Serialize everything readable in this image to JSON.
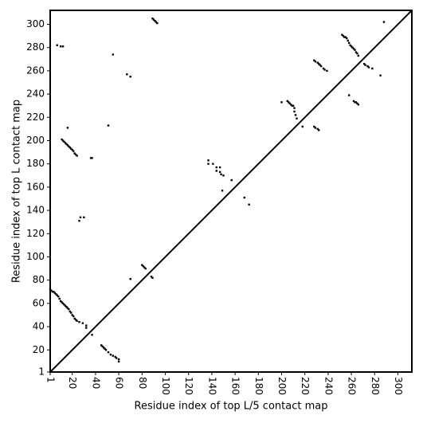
{
  "chart_data": {
    "type": "scatter",
    "xlabel": "Residue index of top L/5 contact map",
    "ylabel": "Residue index of top L contact map",
    "xlim": [
      1,
      312
    ],
    "ylim": [
      1,
      312
    ],
    "xticks": [
      1,
      20,
      40,
      60,
      80,
      100,
      120,
      140,
      160,
      180,
      200,
      220,
      240,
      260,
      280,
      300
    ],
    "yticks": [
      1,
      20,
      40,
      60,
      80,
      100,
      120,
      140,
      160,
      180,
      200,
      220,
      240,
      260,
      280,
      300
    ],
    "color": "#000000",
    "x": [
      11,
      12,
      13,
      14,
      15,
      16,
      17,
      18,
      19,
      20,
      21,
      22,
      23,
      24,
      16,
      7,
      10,
      12,
      55,
      67,
      70,
      36,
      37,
      27,
      30,
      26,
      51,
      89,
      90,
      91,
      92,
      93,
      288,
      252,
      253,
      254,
      255,
      256,
      257,
      258,
      259,
      260,
      261,
      262,
      263,
      264,
      265,
      266,
      271,
      272,
      274,
      275,
      278,
      285,
      228,
      229,
      231,
      232,
      233,
      234,
      236,
      237,
      239,
      258,
      262,
      263,
      264,
      265,
      266,
      205,
      206,
      207,
      208,
      209,
      210,
      211,
      211,
      212,
      213,
      200,
      218,
      228,
      229,
      231,
      232,
      137,
      137,
      141,
      144,
      144,
      147,
      147,
      148,
      150,
      149,
      157,
      168,
      172,
      1,
      2,
      3,
      4,
      5,
      6,
      7,
      8,
      9,
      10,
      11,
      12,
      13,
      14,
      15,
      16,
      17,
      18,
      19,
      20,
      21,
      22,
      23,
      24,
      26,
      29,
      32,
      32,
      37,
      45,
      46,
      47,
      48,
      49,
      51,
      53,
      55,
      57,
      58,
      60,
      60,
      80,
      81,
      82,
      83,
      88,
      89,
      70
    ],
    "y": [
      201,
      200,
      199,
      198,
      197,
      196,
      195,
      194,
      193,
      192,
      191,
      189,
      188,
      187,
      211,
      282,
      281,
      281,
      274,
      257,
      255,
      185,
      185,
      134,
      134,
      131,
      213,
      305,
      304,
      303,
      302,
      301,
      302,
      291,
      290,
      289,
      289,
      288,
      286,
      284,
      282,
      281,
      280,
      279,
      278,
      276,
      275,
      273,
      266,
      265,
      264,
      263,
      262,
      256,
      269,
      268,
      267,
      266,
      265,
      264,
      262,
      261,
      260,
      239,
      234,
      233,
      233,
      232,
      231,
      234,
      233,
      232,
      231,
      230,
      230,
      228,
      225,
      222,
      219,
      233,
      212,
      212,
      211,
      210,
      209,
      183,
      180,
      180,
      177,
      174,
      177,
      173,
      171,
      170,
      157,
      166,
      151,
      145,
      72,
      71,
      70,
      70,
      69,
      68,
      67,
      66,
      64,
      62,
      61,
      60,
      59,
      58,
      57,
      56,
      55,
      53,
      52,
      50,
      49,
      47,
      46,
      45,
      44,
      43,
      41,
      39,
      33,
      24,
      23,
      22,
      21,
      20,
      18,
      16,
      15,
      14,
      13,
      12,
      10,
      93,
      92,
      91,
      90,
      83,
      82,
      81
    ]
  }
}
